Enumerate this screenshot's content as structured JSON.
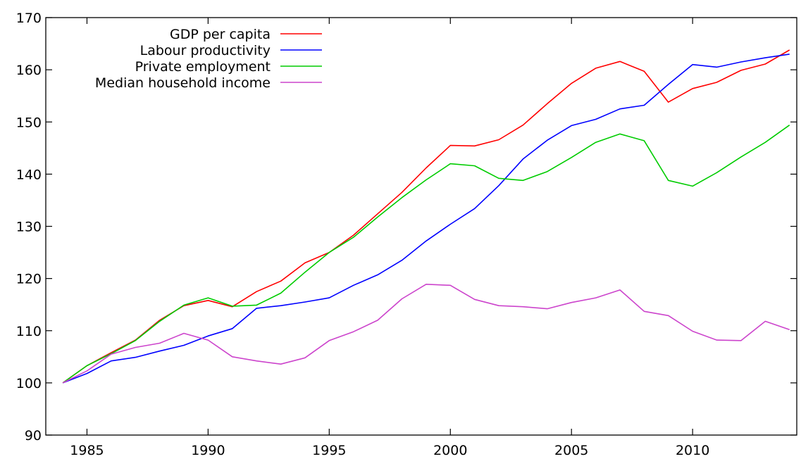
{
  "chart_data": {
    "type": "line",
    "title": "",
    "xlabel": "",
    "ylabel": "",
    "xlim": [
      1983.3,
      2014.3
    ],
    "ylim": [
      90,
      170
    ],
    "x_ticks": [
      1985,
      1990,
      1995,
      2000,
      2005,
      2010
    ],
    "y_ticks": [
      90,
      100,
      110,
      120,
      130,
      140,
      150,
      160,
      170
    ],
    "x_tick_labels": [
      "1985",
      "1990",
      "1995",
      "2000",
      "2005",
      "2010"
    ],
    "y_tick_labels": [
      "90",
      "100",
      "110",
      "120",
      "130",
      "140",
      "150",
      "160",
      "170"
    ],
    "grid": false,
    "legend_position": "top-left",
    "x": [
      1984,
      1985,
      1986,
      1987,
      1988,
      1989,
      1990,
      1991,
      1992,
      1993,
      1994,
      1995,
      1996,
      1997,
      1998,
      1999,
      2000,
      2001,
      2002,
      2003,
      2004,
      2005,
      2006,
      2007,
      2008,
      2009,
      2010,
      2011,
      2012,
      2013,
      2014
    ],
    "series": [
      {
        "name": "GDP per capita",
        "color": "#ff0000",
        "values": [
          100,
          103.3,
          105.8,
          108.2,
          112,
          114.8,
          115.8,
          114.6,
          117.5,
          119.5,
          123,
          125,
          128.3,
          132.4,
          136.5,
          141.2,
          145.5,
          145.4,
          146.6,
          149.4,
          153.5,
          157.4,
          160.3,
          161.6,
          159.7,
          153.8,
          156.4,
          157.6,
          159.9,
          161.1,
          163.8
        ]
      },
      {
        "name": "Labour productivity",
        "color": "#0000ff",
        "values": [
          100,
          101.8,
          104.2,
          104.9,
          106.1,
          107.2,
          109,
          110.4,
          114.3,
          114.8,
          115.5,
          116.3,
          118.7,
          120.7,
          123.5,
          127.2,
          130.4,
          133.4,
          137.8,
          142.9,
          146.5,
          149.3,
          150.5,
          152.5,
          153.2,
          157.2,
          161,
          160.5,
          161.5,
          162.3,
          163
        ]
      },
      {
        "name": "Private employment",
        "color": "#00cc00",
        "values": [
          100,
          103.3,
          105.6,
          108.1,
          111.8,
          114.9,
          116.3,
          114.7,
          114.9,
          117.2,
          121.2,
          125,
          127.9,
          131.8,
          135.5,
          138.9,
          142,
          141.6,
          139.2,
          138.8,
          140.5,
          143.2,
          146.1,
          147.7,
          146.4,
          138.8,
          137.7,
          140.3,
          143.3,
          146.1,
          149.4
        ]
      },
      {
        "name": "Median household income",
        "color": "#cc44cc",
        "values": [
          100,
          102.3,
          105.5,
          106.8,
          107.6,
          109.5,
          108.2,
          105,
          104.2,
          103.6,
          104.8,
          108.1,
          109.8,
          112,
          116.1,
          118.9,
          118.7,
          116,
          114.8,
          114.6,
          114.2,
          115.4,
          116.3,
          117.8,
          113.7,
          112.9,
          109.9,
          108.2,
          108.1,
          111.8,
          110.2
        ]
      }
    ]
  }
}
